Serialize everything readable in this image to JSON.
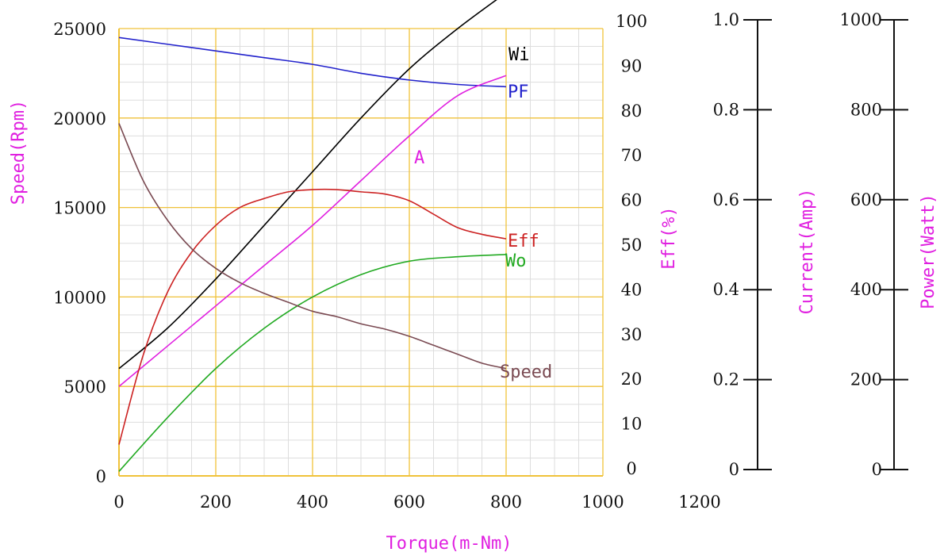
{
  "chart_data": {
    "type": "line",
    "xlabel": "Torque(m-Nm)",
    "x_ticks": [
      0,
      200,
      400,
      600,
      800,
      1000,
      1200
    ],
    "xlim": [
      0,
      1000
    ],
    "grid": true,
    "axes": {
      "speed": {
        "label": "Speed(Rpm)",
        "range": [
          0,
          25000
        ],
        "ticks": [
          0,
          5000,
          10000,
          15000,
          20000,
          25000
        ]
      },
      "eff": {
        "label": "Eff(%)",
        "range": [
          0,
          100
        ],
        "ticks": [
          0,
          10,
          20,
          30,
          40,
          50,
          60,
          70,
          80,
          90,
          100
        ]
      },
      "current": {
        "label": "Current(Amp)",
        "range": [
          0,
          1.0
        ],
        "ticks": [
          "0",
          "0.2",
          "0.4",
          "0.6",
          "0.8",
          "1.0"
        ]
      },
      "power": {
        "label": "Power(Watt)",
        "range": [
          0,
          1000
        ],
        "ticks": [
          "0",
          "200",
          "400",
          "600",
          "800",
          "1000"
        ]
      }
    },
    "series": [
      {
        "name": "Wi",
        "axis": "power",
        "color": "#000000",
        "x": [
          0,
          100,
          200,
          300,
          400,
          500,
          600,
          700,
          800
        ],
        "values": [
          240,
          330,
          440,
          560,
          680,
          800,
          910,
          1000,
          1080
        ]
      },
      {
        "name": "PF",
        "axis": "eff",
        "color": "#2222cc",
        "x": [
          0,
          100,
          200,
          300,
          400,
          500,
          600,
          700,
          800
        ],
        "values": [
          98,
          96.5,
          95,
          93.5,
          92,
          90,
          88.5,
          87.5,
          87
        ]
      },
      {
        "name": "A",
        "axis": "eff",
        "color": "#e020e0",
        "x": [
          0,
          100,
          200,
          300,
          400,
          500,
          600,
          700,
          800
        ],
        "values": [
          20,
          29,
          38,
          47,
          56,
          66,
          76,
          85,
          89.5
        ]
      },
      {
        "name": "Eff",
        "axis": "eff",
        "color": "#cc2222",
        "x": [
          0,
          50,
          100,
          150,
          200,
          250,
          300,
          350,
          400,
          450,
          500,
          550,
          600,
          650,
          700,
          750,
          800
        ],
        "values": [
          7,
          27,
          41,
          50,
          56,
          60,
          62,
          63.5,
          64,
          64,
          63.5,
          63,
          61.5,
          58.5,
          55.5,
          54,
          53
        ]
      },
      {
        "name": "Wo",
        "axis": "eff",
        "color": "#22aa22",
        "x": [
          0,
          100,
          200,
          300,
          400,
          500,
          600,
          700,
          800
        ],
        "values": [
          1,
          13,
          24,
          33,
          40,
          45,
          48,
          49,
          49.5
        ]
      },
      {
        "name": "Speed",
        "axis": "speed",
        "color": "#7a4a52",
        "x": [
          0,
          50,
          100,
          150,
          200,
          250,
          300,
          350,
          400,
          450,
          500,
          550,
          600,
          650,
          700,
          750,
          800
        ],
        "values": [
          19700,
          16500,
          14300,
          12700,
          11600,
          10800,
          10200,
          9700,
          9200,
          8900,
          8500,
          8200,
          7800,
          7300,
          6800,
          6300,
          6000
        ]
      }
    ]
  }
}
